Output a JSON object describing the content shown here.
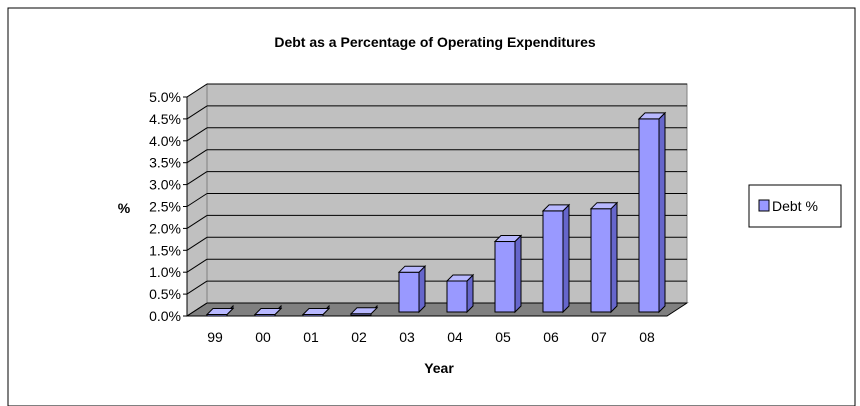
{
  "chart_data": {
    "type": "bar",
    "title": "Debt as a Percentage of Operating Expenditures",
    "xlabel": "Year",
    "ylabel": "%",
    "categories": [
      "99",
      "00",
      "01",
      "02",
      "03",
      "04",
      "05",
      "06",
      "07",
      "08"
    ],
    "series": [
      {
        "name": "Debt %",
        "values": [
          0.0,
          0.0,
          0.0,
          0.05,
          1.0,
          0.8,
          1.7,
          2.4,
          2.45,
          4.5
        ]
      }
    ],
    "ylim": [
      0,
      5
    ],
    "y_ticks": [
      "0.0%",
      "0.5%",
      "1.0%",
      "1.5%",
      "2.0%",
      "2.5%",
      "3.0%",
      "3.5%",
      "4.0%",
      "4.5%",
      "5.0%"
    ],
    "grid": true,
    "legend_position": "right",
    "style": "3d-column",
    "colors": {
      "bar_front": "#9999ff",
      "bar_side": "#6666cc",
      "bar_top": "#b8b8ff",
      "plot_wall": "#c0c0c0",
      "plot_floor": "#808080",
      "gridline": "#000000"
    }
  }
}
